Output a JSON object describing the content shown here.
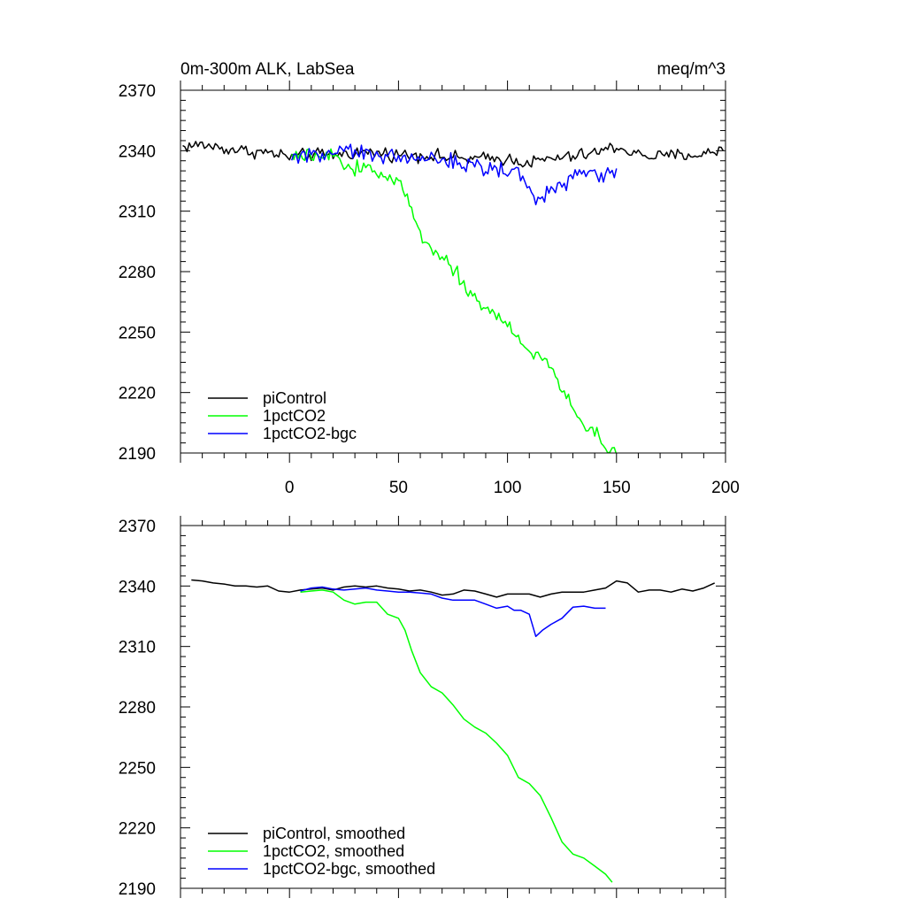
{
  "chart_data": [
    {
      "type": "line",
      "title": "0m-300m ALK, LabSea",
      "units_label": "meq/m^3",
      "xlabel": "",
      "ylabel": "",
      "xlim": [
        -50,
        200
      ],
      "ylim": [
        2190,
        2370
      ],
      "x_ticks": [
        "0",
        "50",
        "100",
        "150",
        "200"
      ],
      "y_ticks": [
        "2370",
        "2340",
        "2310",
        "2280",
        "2250",
        "2220",
        "2190"
      ],
      "legend_position": "bottom-left",
      "colors": {
        "piControl": "#000000",
        "1pctCO2": "#00ff00",
        "1pctCO2-bgc": "#0000ff"
      },
      "series": [
        {
          "name": "piControl",
          "noise": 1.6,
          "x": [
            -49,
            -40,
            -30,
            -20,
            -10,
            0,
            10,
            20,
            30,
            40,
            50,
            60,
            70,
            80,
            90,
            100,
            110,
            120,
            130,
            140,
            150,
            160,
            170,
            180,
            190,
            199
          ],
          "y": [
            2342,
            2343,
            2341,
            2340,
            2339,
            2337,
            2338,
            2338,
            2339,
            2339,
            2338,
            2338,
            2337,
            2336,
            2336,
            2336,
            2334,
            2336,
            2337,
            2339,
            2342,
            2338,
            2337,
            2338,
            2338,
            2341
          ]
        },
        {
          "name": "1pctCO2",
          "noise": 1.8,
          "x": [
            1,
            10,
            20,
            25,
            30,
            35,
            40,
            45,
            50,
            55,
            60,
            65,
            70,
            75,
            80,
            85,
            90,
            95,
            100,
            105,
            110,
            115,
            120,
            125,
            130,
            135,
            140,
            145,
            150
          ],
          "y": [
            2337,
            2337,
            2337,
            2333,
            2331,
            2332,
            2331,
            2326,
            2324,
            2314,
            2299,
            2292,
            2288,
            2282,
            2273,
            2267,
            2262,
            2258,
            2254,
            2245,
            2241,
            2238,
            2232,
            2222,
            2213,
            2204,
            2200,
            2193,
            2189
          ]
        },
        {
          "name": "1pctCO2-bgc",
          "noise": 2.0,
          "x": [
            1,
            10,
            20,
            30,
            40,
            50,
            60,
            70,
            80,
            90,
            100,
            105,
            110,
            113,
            116,
            120,
            125,
            130,
            135,
            140,
            145,
            150
          ],
          "y": [
            2337,
            2338,
            2339,
            2339,
            2338,
            2337,
            2337,
            2335,
            2333,
            2331,
            2330,
            2329,
            2324,
            2315,
            2316,
            2321,
            2322,
            2328,
            2329,
            2330,
            2328,
            2331
          ]
        }
      ]
    },
    {
      "type": "line",
      "title": "",
      "xlabel": "",
      "ylabel": "",
      "xlim": [
        -50,
        200
      ],
      "ylim": [
        2190,
        2370
      ],
      "y_ticks": [
        "2370",
        "2340",
        "2310",
        "2280",
        "2250",
        "2220",
        "2190"
      ],
      "legend_position": "bottom-left",
      "colors": {
        "piControl, smoothed": "#000000",
        "1pctCO2, smoothed": "#00ff00",
        "1pctCO2-bgc, smoothed": "#0000ff"
      },
      "series": [
        {
          "name": "piControl, smoothed",
          "x": [
            -45,
            -40,
            -35,
            -30,
            -25,
            -20,
            -15,
            -10,
            -5,
            0,
            5,
            10,
            15,
            20,
            25,
            30,
            35,
            40,
            45,
            50,
            55,
            60,
            65,
            70,
            75,
            80,
            85,
            90,
            95,
            100,
            105,
            110,
            115,
            120,
            125,
            130,
            135,
            140,
            145,
            150,
            155,
            160,
            165,
            170,
            175,
            180,
            185,
            190,
            195
          ],
          "y": [
            2343,
            2342.5,
            2341.5,
            2341,
            2340,
            2340,
            2339.5,
            2340,
            2337.5,
            2337,
            2338,
            2338.5,
            2339,
            2338,
            2339.5,
            2340,
            2339.5,
            2340,
            2339,
            2338.5,
            2337.5,
            2338,
            2337,
            2335.5,
            2336,
            2338,
            2337.5,
            2336,
            2334.5,
            2336,
            2336,
            2336,
            2334.5,
            2336,
            2337,
            2337,
            2337,
            2338,
            2339,
            2342.5,
            2341.5,
            2337,
            2338,
            2338,
            2337,
            2338.5,
            2337.5,
            2339,
            2341.5
          ]
        },
        {
          "name": "1pctCO2, smoothed",
          "x": [
            5,
            10,
            15,
            20,
            25,
            30,
            35,
            40,
            45,
            50,
            53,
            56,
            60,
            65,
            70,
            75,
            80,
            85,
            90,
            95,
            100,
            105,
            110,
            115,
            120,
            125,
            130,
            135,
            140,
            145,
            148
          ],
          "y": [
            2337,
            2337.5,
            2338,
            2337,
            2333,
            2331,
            2332,
            2332,
            2326,
            2324,
            2318,
            2308,
            2297,
            2290,
            2287,
            2281,
            2274,
            2270,
            2267,
            2262,
            2256,
            2245,
            2242,
            2236,
            2225,
            2213,
            2207,
            2205,
            2201,
            2197,
            2193
          ]
        },
        {
          "name": "1pctCO2-bgc, smoothed",
          "x": [
            5,
            10,
            15,
            20,
            25,
            30,
            35,
            40,
            45,
            50,
            55,
            60,
            65,
            70,
            75,
            80,
            85,
            90,
            95,
            100,
            103,
            106,
            110,
            113,
            116,
            120,
            125,
            130,
            135,
            140,
            145
          ],
          "y": [
            2337.5,
            2339,
            2339.5,
            2338.5,
            2338,
            2338.5,
            2339,
            2338,
            2337.5,
            2337,
            2337,
            2336.5,
            2336,
            2334,
            2333,
            2333,
            2333,
            2331,
            2329,
            2330,
            2328,
            2328,
            2326,
            2315,
            2318,
            2321,
            2324,
            2329.5,
            2330,
            2329,
            2329
          ]
        }
      ]
    }
  ]
}
